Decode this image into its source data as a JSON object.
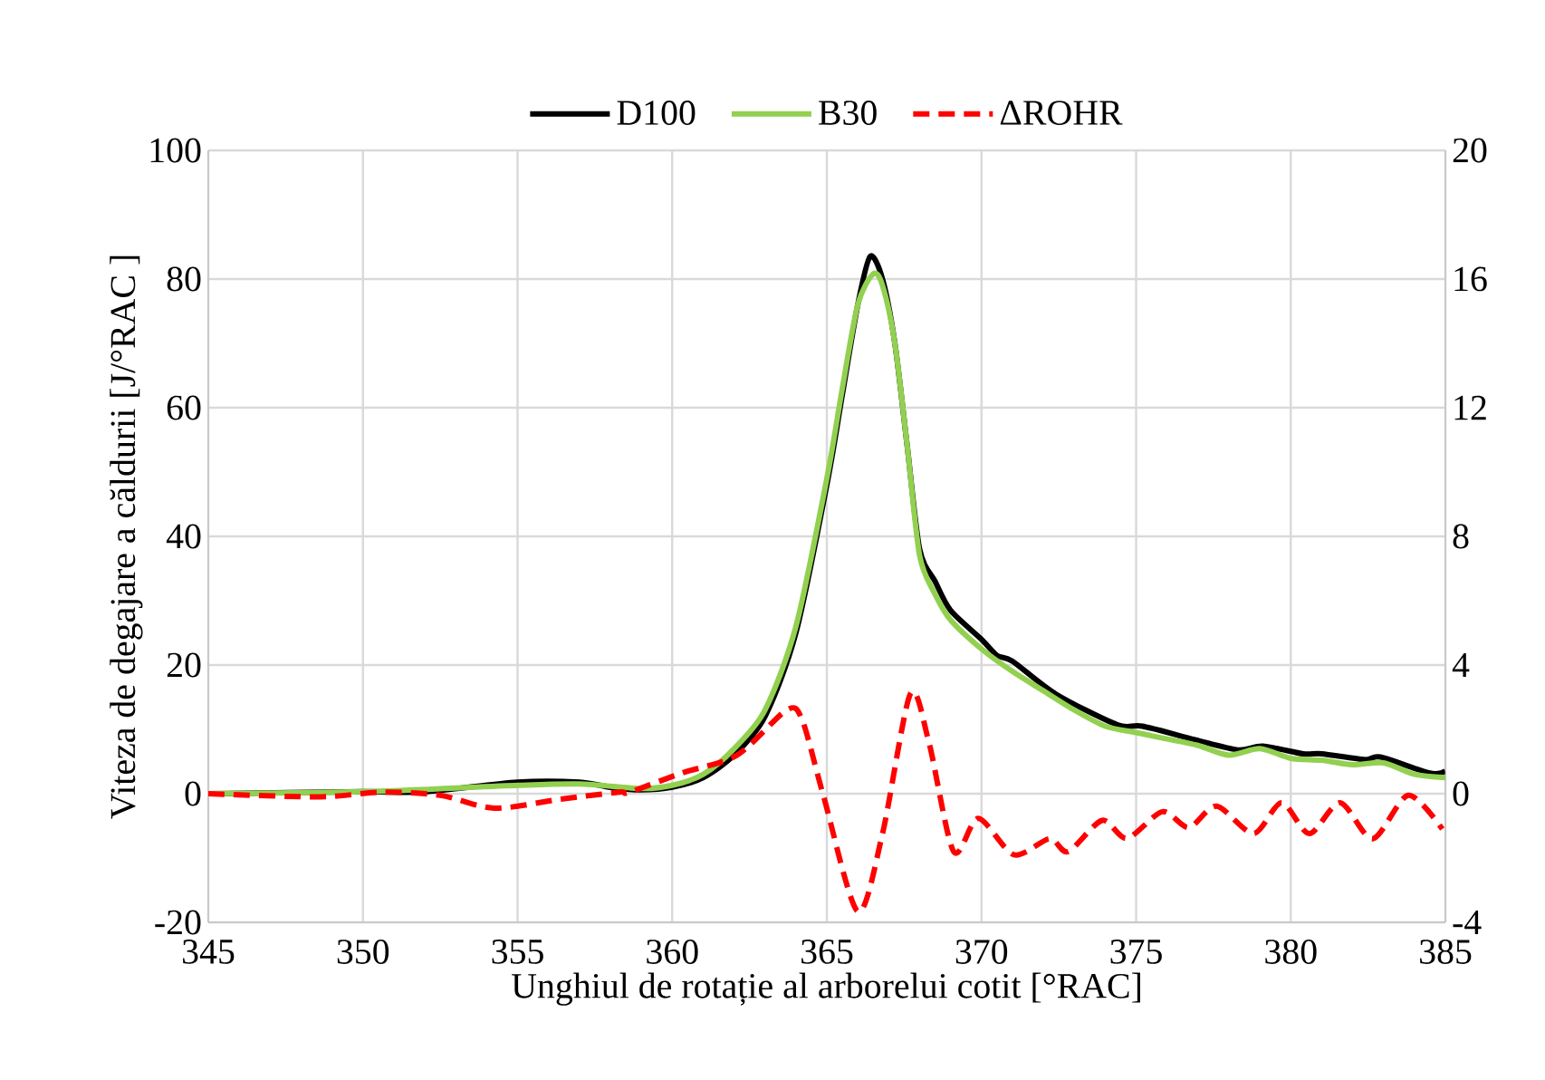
{
  "chart_data": {
    "type": "line",
    "xlabel": "Unghiul de rotație al arborelui cotit [°RAC]",
    "ylabel": "Viteza de degajare a căldurii [J/°RAC ]",
    "xlim": [
      345,
      385
    ],
    "xticks": [
      345,
      350,
      355,
      360,
      365,
      370,
      375,
      380,
      385
    ],
    "ylim": [
      -20,
      100
    ],
    "yticks": [
      -20,
      0,
      20,
      40,
      60,
      80,
      100
    ],
    "y2lim": [
      -4,
      20
    ],
    "y2ticks": [
      -4,
      0,
      4,
      8,
      12,
      16,
      20
    ],
    "grid": true,
    "legend": "top",
    "marker": "none",
    "series": [
      {
        "name": "D100",
        "color": "#000000",
        "line_style": "solid",
        "x": [
          345,
          350,
          352,
          355,
          357,
          358,
          359,
          360,
          361,
          362,
          363,
          364,
          365,
          365.5,
          366,
          366.4,
          366.8,
          367.2,
          367.6,
          368,
          368.5,
          369,
          370,
          370.5,
          371,
          372.4,
          374.4,
          375.2,
          376.9,
          378.3,
          379.1,
          380.4,
          381,
          382.4,
          382.9,
          384.5,
          385
        ],
        "values": [
          0,
          0.3,
          0.3,
          1.8,
          1.8,
          1,
          0.6,
          1,
          2.5,
          6,
          12,
          25,
          48,
          62,
          76,
          83.5,
          80,
          70,
          54,
          38,
          33,
          28.5,
          24,
          21.5,
          20.6,
          15.5,
          10.7,
          10.5,
          8.4,
          6.8,
          7.4,
          6.2,
          6.2,
          5.3,
          5.7,
          3.2,
          3.5
        ]
      },
      {
        "name": "B30",
        "color": "#92d050",
        "line_style": "solid",
        "x": [
          345,
          350,
          355,
          357,
          359,
          360,
          361,
          362,
          363,
          364,
          365,
          365.5,
          366,
          366.5,
          366.8,
          367.2,
          367.6,
          368,
          368.5,
          369,
          370,
          371,
          372,
          373,
          374,
          375,
          376,
          377,
          378,
          379,
          380,
          381,
          382,
          383,
          384,
          385
        ],
        "values": [
          0,
          0.3,
          1.3,
          1.5,
          0.8,
          1.3,
          3,
          7,
          13,
          26,
          49,
          63,
          76,
          80.8,
          79,
          70,
          54,
          37,
          31,
          27,
          22.5,
          19,
          16,
          13,
          10.5,
          9.5,
          8.5,
          7.5,
          6,
          7,
          5.5,
          5.2,
          4.5,
          4.8,
          3,
          2.5
        ]
      },
      {
        "name": "ΔROHR",
        "color": "#ff0000",
        "line_style": "dashed",
        "axis": "y2",
        "x": [
          345,
          348.6,
          350.6,
          352.5,
          354.25,
          356.4,
          358.3,
          358.6,
          360.3,
          362.1,
          363.7,
          364.2,
          364.9,
          366,
          366.8,
          367.7,
          368.3,
          369.1,
          369.9,
          371.05,
          372.2,
          372.8,
          373.9,
          374.7,
          375.85,
          376.7,
          377.6,
          378.8,
          379.7,
          380.6,
          381.6,
          382.65,
          383.8,
          384.9
        ],
        "values": [
          0,
          -0.1,
          0.05,
          -0.05,
          -0.45,
          -0.17,
          0.05,
          0.04,
          0.64,
          1.2,
          2.6,
          2.3,
          -0.1,
          -3.66,
          -1.24,
          3.1,
          1.6,
          -1.8,
          -0.77,
          -1.9,
          -1.4,
          -1.8,
          -0.83,
          -1.39,
          -0.56,
          -1.05,
          -0.39,
          -1.24,
          -0.28,
          -1.24,
          -0.28,
          -1.4,
          -0.05,
          -1.1
        ]
      }
    ]
  }
}
